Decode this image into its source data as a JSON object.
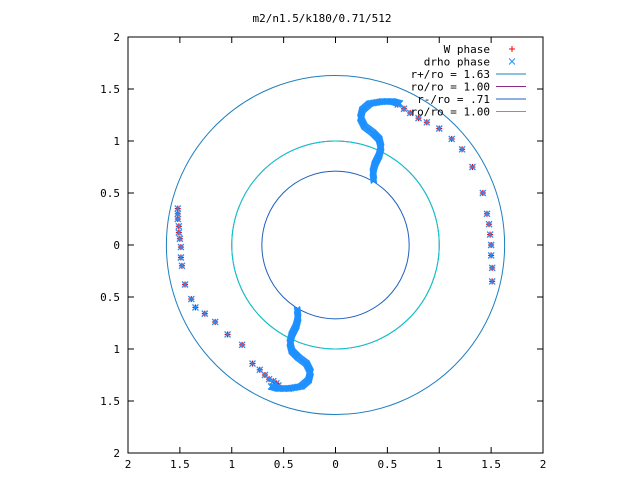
{
  "chart_data": {
    "type": "scatter",
    "title": "m2/n1.5/k180/0.71/512",
    "xlabel": "",
    "ylabel": "",
    "xlim": [
      -2,
      2
    ],
    "ylim": [
      -2,
      2
    ],
    "x_tick_labels": [
      "2",
      "1.5",
      "1",
      "0.5",
      "0",
      "0.5",
      "1",
      "1.5",
      "2"
    ],
    "y_tick_labels": [
      "2",
      "1.5",
      "1",
      "0.5",
      "0",
      "0.5",
      "1",
      "1.5",
      "2"
    ],
    "x_tick_values": [
      -2,
      -1.5,
      -1,
      -0.5,
      0,
      0.5,
      1,
      1.5,
      2
    ],
    "y_tick_values": [
      2,
      1.5,
      1,
      0.5,
      0,
      -0.5,
      -1,
      -1.5,
      -2
    ],
    "grid": false,
    "legend_position": "top-right",
    "series": [
      {
        "name": "W phase",
        "marker": "plus",
        "color": "#ff0000",
        "x": [
          -1.52,
          -1.52,
          -1.52,
          -1.51,
          -1.51,
          -1.5,
          -1.49,
          -1.49,
          -1.48,
          -1.45,
          -1.39,
          -1.35,
          -1.26,
          -1.16,
          -1.04,
          -0.9,
          -0.8,
          -0.73,
          -0.68,
          -0.64,
          -0.6,
          -0.57,
          -0.55,
          0.6,
          0.66,
          0.72,
          0.8,
          0.88,
          1.0,
          1.12,
          1.22,
          1.32,
          1.42,
          1.46,
          1.48,
          1.49,
          1.5,
          1.5,
          1.51,
          1.51
        ],
        "y": [
          0.35,
          0.3,
          0.25,
          0.18,
          0.12,
          0.06,
          -0.02,
          -0.12,
          -0.2,
          -0.38,
          -0.52,
          -0.6,
          -0.66,
          -0.74,
          -0.86,
          -0.96,
          -1.14,
          -1.2,
          -1.25,
          -1.29,
          -1.31,
          -1.33,
          -1.35,
          1.35,
          1.31,
          1.27,
          1.22,
          1.18,
          1.12,
          1.02,
          0.92,
          0.75,
          0.5,
          0.3,
          0.2,
          0.1,
          0.0,
          -0.1,
          -0.22,
          -0.35
        ]
      },
      {
        "name": "drho phase",
        "marker": "cross",
        "color": "#1e90ff"
      }
    ],
    "circles": [
      {
        "name": "r+/ro = 1.63",
        "radius": 1.63,
        "color": "#1f7fbf"
      },
      {
        "name": "ro/ro = 1.00",
        "radius": 1.0,
        "color": "#8a2a8a"
      },
      {
        "name": "r-/ro = .71",
        "radius": 0.71,
        "color": "#1f5fbf"
      },
      {
        "name": "ro/ro = 1.00",
        "radius": 1.0,
        "color": "#00d0d0"
      }
    ]
  }
}
